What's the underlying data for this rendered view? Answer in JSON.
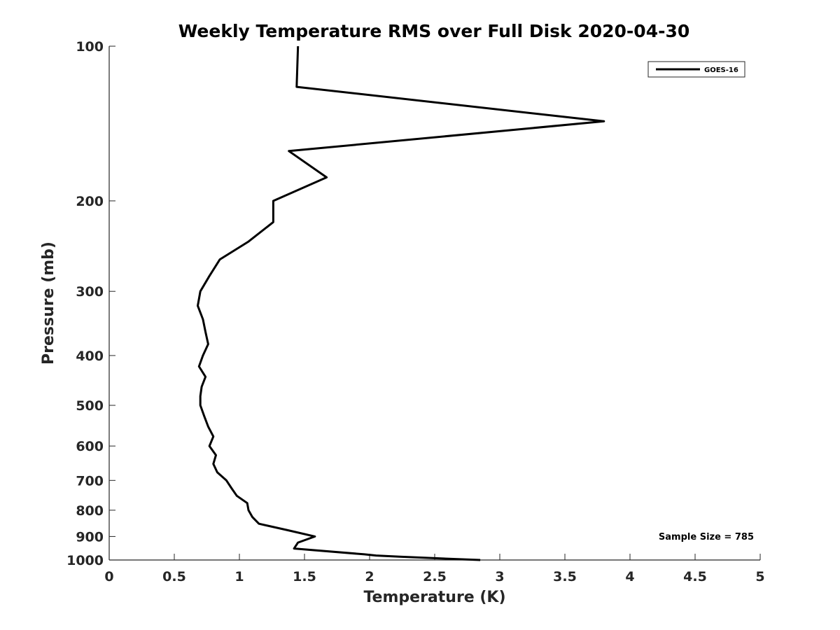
{
  "chart_data": {
    "type": "line",
    "title": "Weekly Temperature RMS over Full Disk 2020-04-30",
    "xlabel": "Temperature (K)",
    "ylabel": "Pressure (mb)",
    "xlim": [
      0,
      5
    ],
    "ylim": [
      100,
      1000
    ],
    "y_scale": "log",
    "y_reversed": true,
    "x_ticks": [
      "0",
      "0.5",
      "1",
      "1.5",
      "2",
      "2.5",
      "3",
      "3.5",
      "4",
      "4.5",
      "5"
    ],
    "y_ticks": [
      "100",
      "200",
      "300",
      "400",
      "500",
      "600",
      "700",
      "800",
      "900",
      "1000"
    ],
    "grid": false,
    "legend_position": "top-right",
    "series": [
      {
        "name": "GOES-16",
        "color": "#000000",
        "points": [
          [
            1.45,
            100
          ],
          [
            1.44,
            120
          ],
          [
            3.8,
            140
          ],
          [
            1.38,
            160
          ],
          [
            1.67,
            180
          ],
          [
            1.26,
            200
          ],
          [
            1.26,
            220
          ],
          [
            1.07,
            240
          ],
          [
            0.85,
            260
          ],
          [
            0.77,
            280
          ],
          [
            0.7,
            300
          ],
          [
            0.68,
            320
          ],
          [
            0.72,
            340
          ],
          [
            0.74,
            360
          ],
          [
            0.76,
            380
          ],
          [
            0.72,
            400
          ],
          [
            0.69,
            420
          ],
          [
            0.74,
            440
          ],
          [
            0.71,
            460
          ],
          [
            0.7,
            480
          ],
          [
            0.7,
            500
          ],
          [
            0.73,
            525
          ],
          [
            0.76,
            550
          ],
          [
            0.8,
            575
          ],
          [
            0.77,
            600
          ],
          [
            0.82,
            625
          ],
          [
            0.8,
            650
          ],
          [
            0.83,
            675
          ],
          [
            0.9,
            700
          ],
          [
            0.94,
            725
          ],
          [
            0.98,
            750
          ],
          [
            1.06,
            775
          ],
          [
            1.07,
            800
          ],
          [
            1.1,
            825
          ],
          [
            1.15,
            850
          ],
          [
            1.37,
            875
          ],
          [
            1.58,
            900
          ],
          [
            1.45,
            925
          ],
          [
            1.42,
            950
          ],
          [
            1.96,
            975
          ],
          [
            2.05,
            980
          ],
          [
            2.23,
            985
          ],
          [
            2.5,
            992
          ],
          [
            2.85,
            1000
          ]
        ]
      }
    ],
    "annotations": [
      "Sample Size = 785"
    ]
  }
}
